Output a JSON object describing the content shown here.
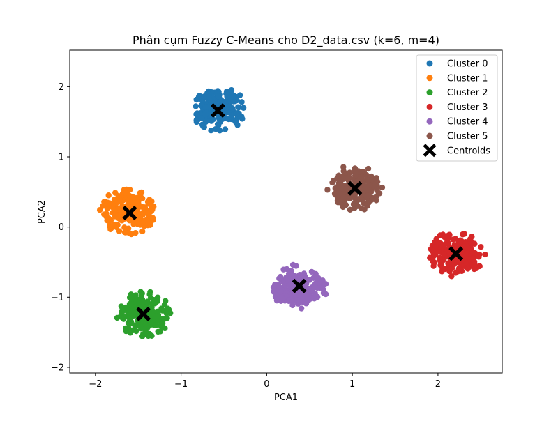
{
  "chart_data": {
    "type": "scatter",
    "title": "Phân cụm Fuzzy C-Means cho D2_data.csv (k=6, m=4)",
    "xlabel": "PCA1",
    "ylabel": "PCA2",
    "xlim": [
      -2.3,
      2.75
    ],
    "ylim": [
      -2.08,
      2.52
    ],
    "xticks": [
      -2,
      -1,
      0,
      1,
      2
    ],
    "yticks": [
      -2,
      -1,
      0,
      1,
      2
    ],
    "grid": false,
    "legend_position": "top-right",
    "series": [
      {
        "name": "Cluster 0",
        "color": "#1f77b4",
        "center": [
          -0.55,
          1.67
        ],
        "spread": [
          0.32,
          0.32
        ],
        "count": 200
      },
      {
        "name": "Cluster 1",
        "color": "#ff7f0e",
        "center": [
          -1.62,
          0.22
        ],
        "spread": [
          0.33,
          0.33
        ],
        "count": 200
      },
      {
        "name": "Cluster 2",
        "color": "#2ca02c",
        "center": [
          -1.44,
          -1.24
        ],
        "spread": [
          0.33,
          0.33
        ],
        "count": 200
      },
      {
        "name": "Cluster 3",
        "color": "#d62728",
        "center": [
          2.22,
          -0.38
        ],
        "spread": [
          0.33,
          0.33
        ],
        "count": 200
      },
      {
        "name": "Cluster 4",
        "color": "#9467bd",
        "center": [
          0.38,
          -0.85
        ],
        "spread": [
          0.33,
          0.33
        ],
        "count": 200
      },
      {
        "name": "Cluster 5",
        "color": "#8c564b",
        "center": [
          1.03,
          0.56
        ],
        "spread": [
          0.33,
          0.33
        ],
        "count": 200
      }
    ],
    "centroids": {
      "name": "Centroids",
      "color": "#000000",
      "marker": "X",
      "points": [
        [
          -0.57,
          1.66
        ],
        [
          -1.6,
          0.2
        ],
        [
          -1.44,
          -1.24
        ],
        [
          2.21,
          -0.38
        ],
        [
          0.38,
          -0.84
        ],
        [
          1.03,
          0.55
        ]
      ]
    }
  }
}
